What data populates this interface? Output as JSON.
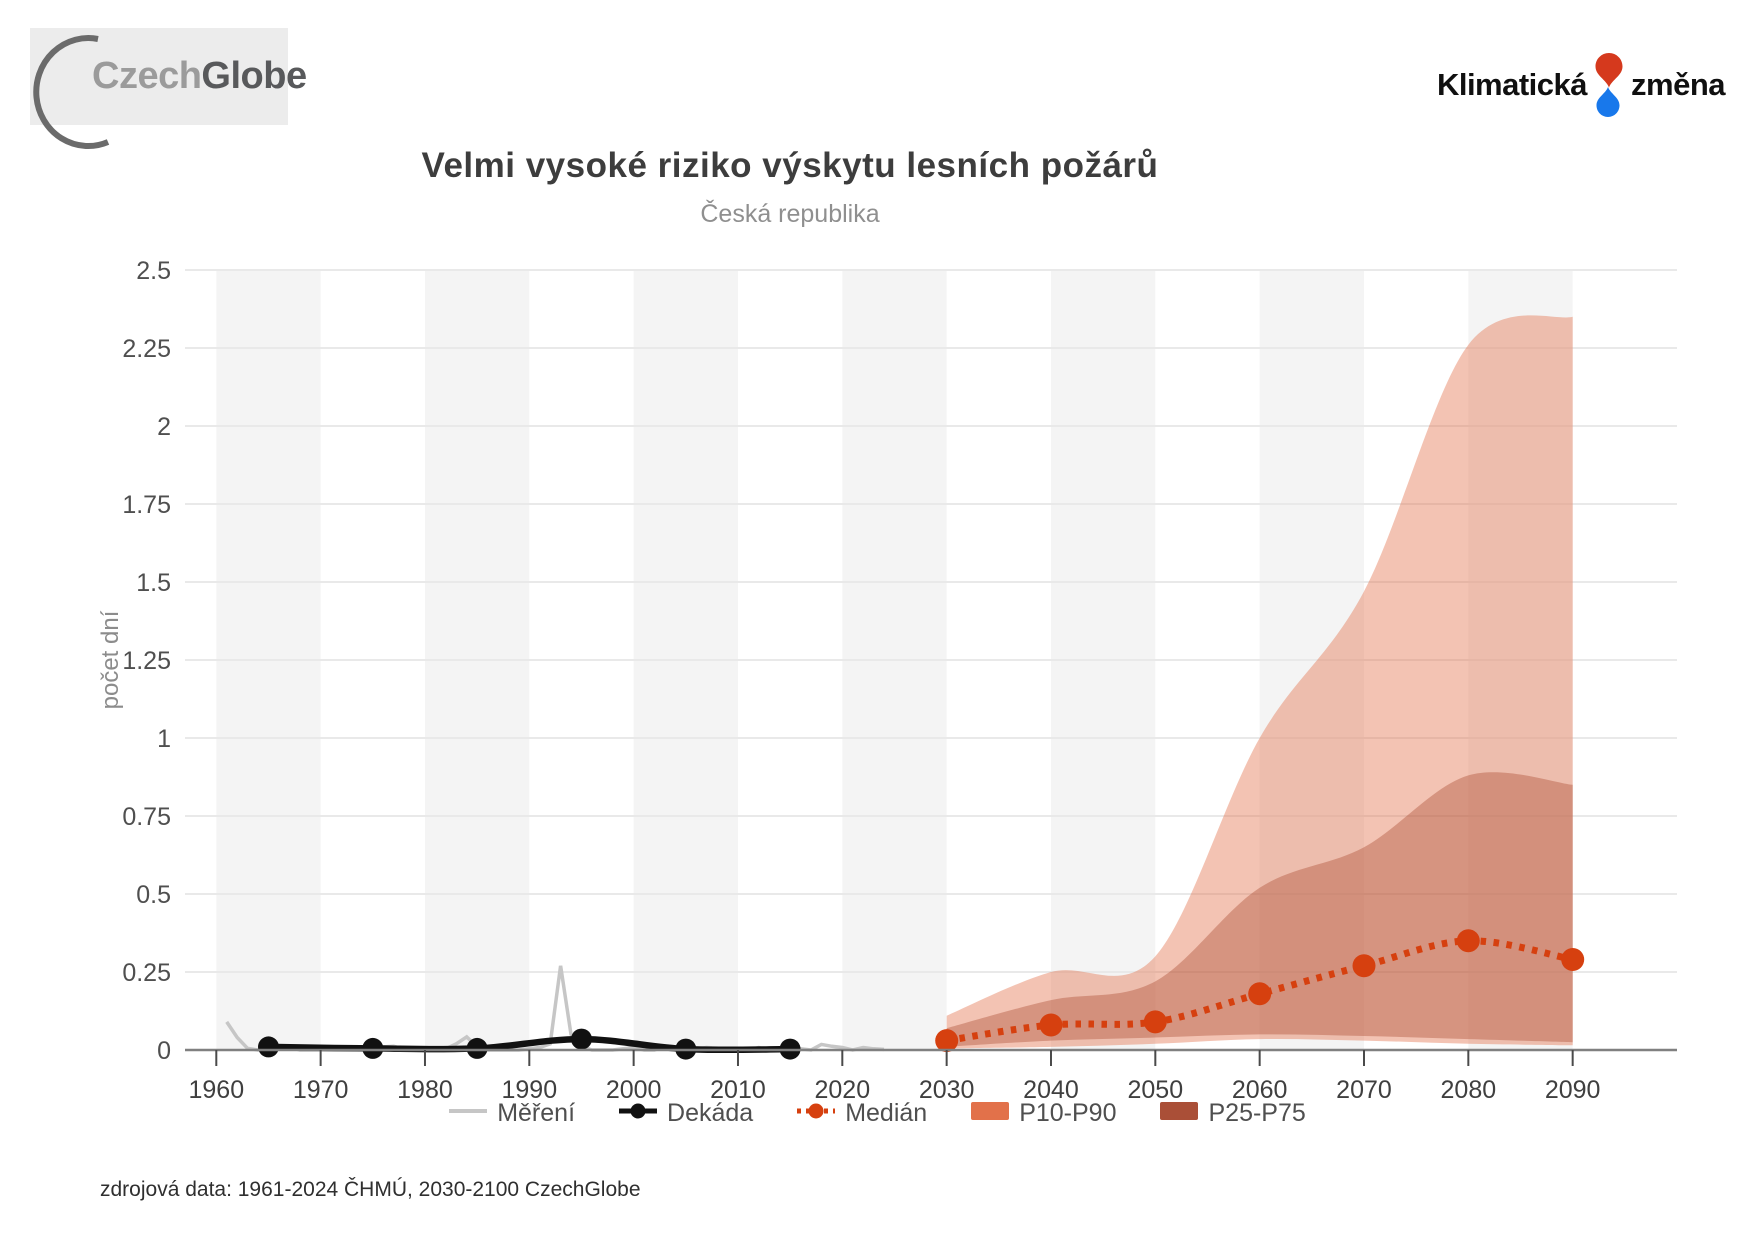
{
  "header": {
    "czechglobe": {
      "czech": "Czech",
      "globe": "Globe"
    },
    "klimaticka": {
      "word_left": "Klimatická",
      "word_right": "změna",
      "red": "#d5391d",
      "blue": "#1878eb"
    }
  },
  "title": "Velmi vysoké riziko výskytu lesních požárů",
  "subtitle": "Česká republika",
  "source": "zdrojová data: 1961-2024 ČHMÚ, 2030-2100 CzechGlobe",
  "legend": [
    {
      "id": "mereni",
      "label": "Měření",
      "type": "line",
      "color": "#c6c6c6"
    },
    {
      "id": "dekada",
      "label": "Dekáda",
      "type": "line-marker",
      "color": "#111111"
    },
    {
      "id": "median",
      "label": "Medián",
      "type": "dotted-marker",
      "color": "#d6400f"
    },
    {
      "id": "p10p90",
      "label": "P10-P90",
      "type": "box",
      "color": "#e2714a"
    },
    {
      "id": "p25p75",
      "label": "P25-P75",
      "type": "box",
      "color": "#aa4f37"
    }
  ],
  "colors": {
    "gridline": "#e9e9e9",
    "stripe": "#f4f4f4",
    "axis_line": "#808080",
    "tick": "#4a4a4a",
    "tick_label": "#3f3f3f",
    "y_label": "#4f4f4f",
    "axis_title": "#8c8c8c"
  },
  "chart_data": {
    "type": "line",
    "title": "Velmi vysoké riziko výskytu lesních požárů",
    "subtitle": "Česká republika",
    "xlabel": "",
    "ylabel": "počet dní",
    "xlim": [
      1957,
      2100
    ],
    "ylim": [
      0,
      2.5
    ],
    "x_ticks": [
      1960,
      1970,
      1980,
      1990,
      2000,
      2010,
      2020,
      2030,
      2040,
      2050,
      2060,
      2070,
      2080,
      2090
    ],
    "y_ticks": [
      "0",
      "0.25",
      "0.5",
      "0.75",
      "1",
      "1.25",
      "1.5",
      "1.75",
      "2",
      "2.25",
      "2.5"
    ],
    "grid": true,
    "legend_position": "bottom",
    "background_stripes": {
      "decades": [
        1960,
        1980,
        2000,
        2020,
        2040,
        2060,
        2080
      ]
    },
    "bands": [
      {
        "name": "P10-P90",
        "color": "#e2714a",
        "opacity": 0.42,
        "x": [
          2030,
          2040,
          2050,
          2060,
          2070,
          2080,
          2090
        ],
        "upper": [
          0.11,
          0.25,
          0.3,
          1.0,
          1.47,
          2.26,
          2.35
        ],
        "lower": [
          0.005,
          0.01,
          0.02,
          0.035,
          0.03,
          0.02,
          0.015
        ]
      },
      {
        "name": "P25-P75",
        "color": "#a7482d",
        "opacity": 0.38,
        "x": [
          2030,
          2040,
          2050,
          2060,
          2070,
          2080,
          2090
        ],
        "upper": [
          0.07,
          0.16,
          0.22,
          0.52,
          0.65,
          0.88,
          0.85
        ],
        "lower": [
          0.01,
          0.03,
          0.04,
          0.05,
          0.045,
          0.035,
          0.025
        ]
      }
    ],
    "series": [
      {
        "name": "Měření",
        "style": "line",
        "color": "#c6c6c6",
        "width": 3.5,
        "x_start": 1961,
        "values": [
          0.09,
          0.04,
          0.005,
          0,
          0.004,
          0.012,
          0.01,
          0,
          0,
          0,
          0,
          0,
          0,
          0,
          0.002,
          0.01,
          0.012,
          0.003,
          0,
          0,
          0,
          0.004,
          0.02,
          0.042,
          0.01,
          0,
          0,
          0,
          0,
          0.004,
          0.008,
          0.02,
          0.27,
          0.05,
          0.012,
          0,
          0,
          0,
          0.004,
          0.008,
          0,
          0,
          0.012,
          0.004,
          0,
          0.004,
          0.008,
          0.006,
          0.003,
          0,
          0,
          0.008,
          0,
          0.004,
          0.012,
          0.004,
          0,
          0.018,
          0.012,
          0.008,
          0,
          0.008,
          0.004,
          0.002
        ]
      },
      {
        "name": "Dekáda",
        "style": "smooth-marker",
        "color": "#111111",
        "width": 6.5,
        "marker_r": 10.5,
        "x": [
          1965,
          1975,
          1985,
          1995,
          2005,
          2015
        ],
        "values": [
          0.01,
          0.005,
          0.005,
          0.035,
          0.003,
          0.003
        ]
      },
      {
        "name": "Medián",
        "style": "dotted-marker",
        "color": "#d6400f",
        "width": 7,
        "marker_r": 11.5,
        "x": [
          2030,
          2040,
          2050,
          2060,
          2070,
          2080,
          2090
        ],
        "values": [
          0.03,
          0.08,
          0.09,
          0.18,
          0.27,
          0.35,
          0.29
        ]
      }
    ]
  }
}
